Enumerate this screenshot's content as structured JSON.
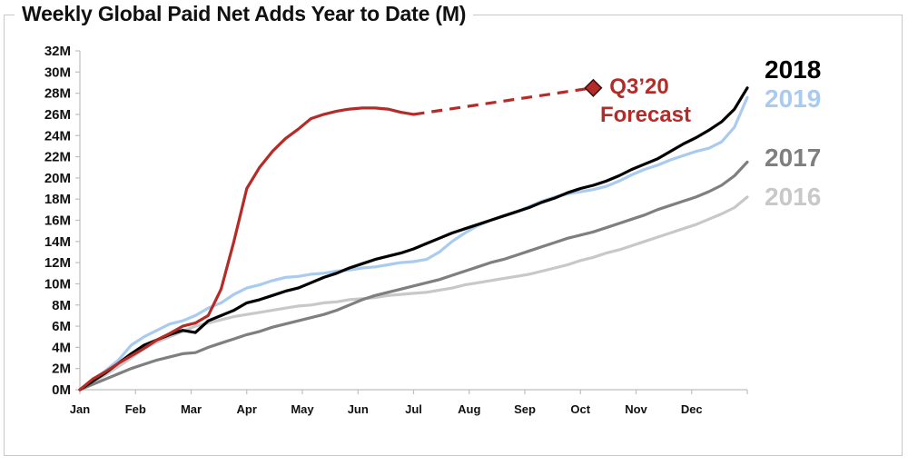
{
  "chart_data": {
    "type": "line",
    "title": "Weekly Global Paid Net Adds Year to Date (M)",
    "xlabel": "",
    "ylabel": "",
    "x_tick_labels": [
      "Jan",
      "Feb",
      "Mar",
      "Apr",
      "May",
      "Jun",
      "Jul",
      "Aug",
      "Sep",
      "Oct",
      "Nov",
      "Dec"
    ],
    "y_tick_labels": [
      "0M",
      "2M",
      "4M",
      "6M",
      "8M",
      "10M",
      "12M",
      "14M",
      "16M",
      "18M",
      "20M",
      "22M",
      "24M",
      "26M",
      "28M",
      "30M",
      "32M"
    ],
    "ylim": [
      0,
      32
    ],
    "x_unit": "week",
    "xlim": [
      0,
      52
    ],
    "grid": false,
    "legend_placement": "right, labels beside line ends",
    "series": [
      {
        "name": "2018",
        "color": "#000000",
        "x": [
          0,
          1,
          2,
          3,
          4,
          5,
          6,
          7,
          8,
          9,
          10,
          11,
          12,
          13,
          14,
          15,
          16,
          17,
          18,
          19,
          20,
          21,
          22,
          23,
          24,
          25,
          26,
          27,
          28,
          29,
          30,
          31,
          32,
          33,
          34,
          35,
          36,
          37,
          38,
          39,
          40,
          41,
          42,
          43,
          44,
          45,
          46,
          47,
          48,
          49,
          50,
          51,
          52
        ],
        "y": [
          0,
          0.8,
          1.6,
          2.5,
          3.4,
          4.2,
          4.7,
          5.2,
          5.6,
          5.4,
          6.5,
          7.0,
          7.5,
          8.2,
          8.5,
          8.9,
          9.3,
          9.6,
          10.1,
          10.6,
          11.0,
          11.5,
          11.9,
          12.3,
          12.6,
          12.9,
          13.3,
          13.8,
          14.3,
          14.8,
          15.2,
          15.6,
          16.0,
          16.4,
          16.8,
          17.2,
          17.7,
          18.1,
          18.6,
          19.0,
          19.3,
          19.7,
          20.2,
          20.8,
          21.3,
          21.8,
          22.5,
          23.2,
          23.8,
          24.5,
          25.3,
          26.5,
          28.5
        ]
      },
      {
        "name": "2019",
        "color": "#a9cbf0",
        "x": [
          0,
          1,
          2,
          3,
          4,
          5,
          6,
          7,
          8,
          9,
          10,
          11,
          12,
          13,
          14,
          15,
          16,
          17,
          18,
          19,
          20,
          21,
          22,
          23,
          24,
          25,
          26,
          27,
          28,
          29,
          30,
          31,
          32,
          33,
          34,
          35,
          36,
          37,
          38,
          39,
          40,
          41,
          42,
          43,
          44,
          45,
          46,
          47,
          48,
          49,
          50,
          51,
          52
        ],
        "y": [
          0,
          0.9,
          1.8,
          2.8,
          4.2,
          5.0,
          5.6,
          6.2,
          6.5,
          7.0,
          7.7,
          8.2,
          9.0,
          9.6,
          9.9,
          10.3,
          10.6,
          10.7,
          10.9,
          11.0,
          11.2,
          11.3,
          11.5,
          11.6,
          11.8,
          12.0,
          12.1,
          12.3,
          13.0,
          14.0,
          14.8,
          15.5,
          16.0,
          16.4,
          16.8,
          17.3,
          17.8,
          18.2,
          18.5,
          18.7,
          18.9,
          19.2,
          19.7,
          20.3,
          20.8,
          21.2,
          21.7,
          22.1,
          22.5,
          22.8,
          23.4,
          24.8,
          27.6
        ]
      },
      {
        "name": "2017",
        "color": "#7f7f7f",
        "x": [
          0,
          1,
          2,
          3,
          4,
          5,
          6,
          7,
          8,
          9,
          10,
          11,
          12,
          13,
          14,
          15,
          16,
          17,
          18,
          19,
          20,
          21,
          22,
          23,
          24,
          25,
          26,
          27,
          28,
          29,
          30,
          31,
          32,
          33,
          34,
          35,
          36,
          37,
          38,
          39,
          40,
          41,
          42,
          43,
          44,
          45,
          46,
          47,
          48,
          49,
          50,
          51,
          52
        ],
        "y": [
          0,
          0.5,
          1.0,
          1.5,
          2.0,
          2.4,
          2.8,
          3.1,
          3.4,
          3.5,
          4.0,
          4.4,
          4.8,
          5.2,
          5.5,
          5.9,
          6.2,
          6.5,
          6.8,
          7.1,
          7.5,
          8.0,
          8.5,
          8.9,
          9.2,
          9.5,
          9.8,
          10.1,
          10.4,
          10.8,
          11.2,
          11.6,
          12.0,
          12.3,
          12.7,
          13.1,
          13.5,
          13.9,
          14.3,
          14.6,
          14.9,
          15.3,
          15.7,
          16.1,
          16.5,
          17.0,
          17.4,
          17.8,
          18.2,
          18.7,
          19.3,
          20.2,
          21.5
        ]
      },
      {
        "name": "2016",
        "color": "#c8c8c8",
        "x": [
          0,
          1,
          2,
          3,
          4,
          5,
          6,
          7,
          8,
          9,
          10,
          11,
          12,
          13,
          14,
          15,
          16,
          17,
          18,
          19,
          20,
          21,
          22,
          23,
          24,
          25,
          26,
          27,
          28,
          29,
          30,
          31,
          32,
          33,
          34,
          35,
          36,
          37,
          38,
          39,
          40,
          41,
          42,
          43,
          44,
          45,
          46,
          47,
          48,
          49,
          50,
          51,
          52
        ],
        "y": [
          0,
          0.7,
          1.4,
          2.2,
          3.0,
          3.9,
          4.5,
          5.0,
          5.5,
          6.0,
          6.3,
          6.6,
          6.9,
          7.1,
          7.3,
          7.5,
          7.7,
          7.9,
          8.0,
          8.2,
          8.3,
          8.5,
          8.6,
          8.7,
          8.9,
          9.0,
          9.1,
          9.2,
          9.4,
          9.6,
          9.9,
          10.1,
          10.3,
          10.5,
          10.7,
          10.9,
          11.2,
          11.5,
          11.8,
          12.2,
          12.5,
          12.9,
          13.2,
          13.6,
          14.0,
          14.4,
          14.8,
          15.2,
          15.6,
          16.1,
          16.6,
          17.2,
          18.2
        ]
      },
      {
        "name": "",
        "color": "#b52b27",
        "x": [
          0,
          1,
          2,
          3,
          4,
          5,
          6,
          7,
          8,
          9,
          10,
          11,
          12,
          13,
          14,
          15,
          16,
          17,
          18,
          19,
          20,
          21,
          22,
          23,
          24,
          25,
          26
        ],
        "y": [
          0,
          1.0,
          1.7,
          2.5,
          3.2,
          3.9,
          4.7,
          5.3,
          6.0,
          6.3,
          7.0,
          9.5,
          14.0,
          19.0,
          21.0,
          22.5,
          23.7,
          24.6,
          25.6,
          26.0,
          26.3,
          26.5,
          26.6,
          26.6,
          26.5,
          26.2,
          26.0
        ]
      }
    ],
    "forecast": {
      "color": "#b52b27",
      "x": [
        26,
        40
      ],
      "y": [
        26.0,
        28.5
      ],
      "label_lines": [
        "Q3’20",
        "Forecast"
      ]
    }
  }
}
